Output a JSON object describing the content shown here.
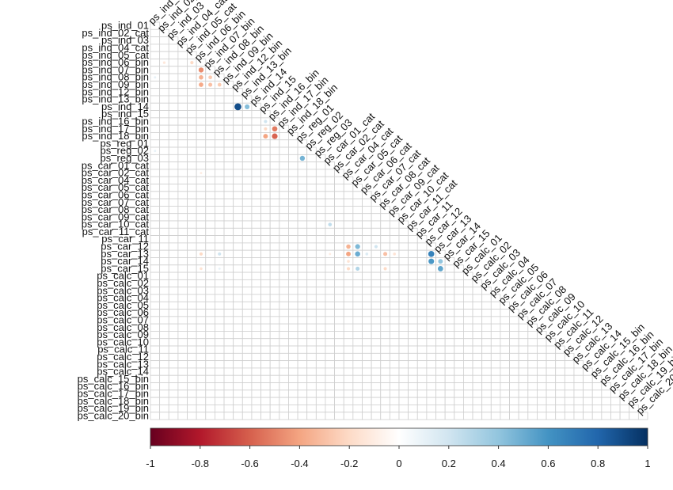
{
  "chart_data": {
    "type": "corrplot",
    "variables": [
      "ps_ind_01",
      "ps_ind_02_cat",
      "ps_ind_03",
      "ps_ind_04_cat",
      "ps_ind_05_cat",
      "ps_ind_06_bin",
      "ps_ind_07_bin",
      "ps_ind_08_bin",
      "ps_ind_09_bin",
      "ps_ind_12_bin",
      "ps_ind_13_bin",
      "ps_ind_14",
      "ps_ind_15",
      "ps_ind_16_bin",
      "ps_ind_17_bin",
      "ps_ind_18_bin",
      "ps_reg_01",
      "ps_reg_02",
      "ps_reg_03",
      "ps_car_01_cat",
      "ps_car_02_cat",
      "ps_car_04_cat",
      "ps_car_05_cat",
      "ps_car_06_cat",
      "ps_car_07_cat",
      "ps_car_08_cat",
      "ps_car_09_cat",
      "ps_car_10_cat",
      "ps_car_11_cat",
      "ps_car_11",
      "ps_car_12",
      "ps_car_13",
      "ps_car_14",
      "ps_car_15",
      "ps_calc_01",
      "ps_calc_02",
      "ps_calc_03",
      "ps_calc_04",
      "ps_calc_05",
      "ps_calc_06",
      "ps_calc_07",
      "ps_calc_08",
      "ps_calc_09",
      "ps_calc_10",
      "ps_calc_11",
      "ps_calc_12",
      "ps_calc_13",
      "ps_calc_14",
      "ps_calc_15_bin",
      "ps_calc_16_bin",
      "ps_calc_17_bin",
      "ps_calc_18_bin",
      "ps_calc_19_bin",
      "ps_calc_20_bin"
    ],
    "cells": [
      {
        "row": "ps_ind_06_bin",
        "col": "ps_ind_02_cat",
        "value": -0.13
      },
      {
        "row": "ps_ind_06_bin",
        "col": "ps_ind_05_cat",
        "value": -0.2
      },
      {
        "row": "ps_ind_07_bin",
        "col": "ps_ind_06_bin",
        "value": -0.47
      },
      {
        "row": "ps_ind_08_bin",
        "col": "ps_ind_01",
        "value": 0.1
      },
      {
        "row": "ps_ind_08_bin",
        "col": "ps_ind_06_bin",
        "value": -0.36
      },
      {
        "row": "ps_ind_08_bin",
        "col": "ps_ind_07_bin",
        "value": -0.26
      },
      {
        "row": "ps_ind_09_bin",
        "col": "ps_ind_06_bin",
        "value": -0.38
      },
      {
        "row": "ps_ind_09_bin",
        "col": "ps_ind_07_bin",
        "value": -0.3
      },
      {
        "row": "ps_ind_09_bin",
        "col": "ps_ind_08_bin",
        "value": -0.26
      },
      {
        "row": "ps_ind_14",
        "col": "ps_ind_12_bin",
        "value": 0.89
      },
      {
        "row": "ps_ind_14",
        "col": "ps_ind_13_bin",
        "value": 0.43
      },
      {
        "row": "ps_ind_16_bin",
        "col": "ps_ind_15",
        "value": 0.2
      },
      {
        "row": "ps_ind_17_bin",
        "col": "ps_ind_15",
        "value": -0.2
      },
      {
        "row": "ps_ind_17_bin",
        "col": "ps_ind_16_bin",
        "value": -0.52
      },
      {
        "row": "ps_ind_18_bin",
        "col": "ps_ind_15",
        "value": -0.4
      },
      {
        "row": "ps_ind_18_bin",
        "col": "ps_ind_16_bin",
        "value": -0.59
      },
      {
        "row": "ps_reg_02",
        "col": "ps_ind_01",
        "value": 0.1
      },
      {
        "row": "ps_reg_03",
        "col": "ps_reg_01",
        "value": 0.47
      },
      {
        "row": "ps_car_02_cat",
        "col": "ps_ind_06_bin",
        "value": -0.1
      },
      {
        "row": "ps_car_10_cat",
        "col": "ps_car_01_cat",
        "value": 0.25
      },
      {
        "row": "ps_car_12",
        "col": "ps_car_04_cat",
        "value": -0.35
      },
      {
        "row": "ps_car_12",
        "col": "ps_car_05_cat",
        "value": 0.45
      },
      {
        "row": "ps_car_12",
        "col": "ps_car_07_cat",
        "value": 0.2
      },
      {
        "row": "ps_car_13",
        "col": "ps_ind_06_bin",
        "value": -0.2
      },
      {
        "row": "ps_car_13",
        "col": "ps_ind_08_bin",
        "value": 0.2
      },
      {
        "row": "ps_car_13",
        "col": "ps_car_01_cat",
        "value": -0.1
      },
      {
        "row": "ps_car_13",
        "col": "ps_car_04_cat",
        "value": -0.4
      },
      {
        "row": "ps_car_13",
        "col": "ps_car_05_cat",
        "value": 0.5
      },
      {
        "row": "ps_car_13",
        "col": "ps_car_06_cat",
        "value": 0.15
      },
      {
        "row": "ps_car_13",
        "col": "ps_car_08_cat",
        "value": -0.3
      },
      {
        "row": "ps_car_13",
        "col": "ps_car_09_cat",
        "value": -0.15
      },
      {
        "row": "ps_car_13",
        "col": "ps_car_12",
        "value": 0.67
      },
      {
        "row": "ps_car_14",
        "col": "ps_car_04_cat",
        "value": -0.15
      },
      {
        "row": "ps_car_14",
        "col": "ps_car_12",
        "value": 0.58
      },
      {
        "row": "ps_car_14",
        "col": "ps_car_13",
        "value": 0.4
      },
      {
        "row": "ps_car_15",
        "col": "ps_ind_06_bin",
        "value": -0.15
      },
      {
        "row": "ps_car_15",
        "col": "ps_ind_08_bin",
        "value": 0.1
      },
      {
        "row": "ps_car_15",
        "col": "ps_car_04_cat",
        "value": -0.2
      },
      {
        "row": "ps_car_15",
        "col": "ps_car_05_cat",
        "value": 0.3
      },
      {
        "row": "ps_car_15",
        "col": "ps_car_08_cat",
        "value": -0.2
      },
      {
        "row": "ps_car_15",
        "col": "ps_car_13",
        "value": 0.53
      }
    ],
    "colors": [
      "#67001F",
      "#B2182B",
      "#D6604D",
      "#F4A582",
      "#FDDBC7",
      "#FFFFFF",
      "#D1E5F0",
      "#92C5DE",
      "#4393C3",
      "#2166AC",
      "#053061"
    ],
    "clim": [
      -1,
      1
    ],
    "cticks": [
      -1,
      -0.8,
      -0.6,
      -0.4,
      -0.2,
      0,
      0.2,
      0.4,
      0.6,
      0.8,
      1
    ]
  }
}
